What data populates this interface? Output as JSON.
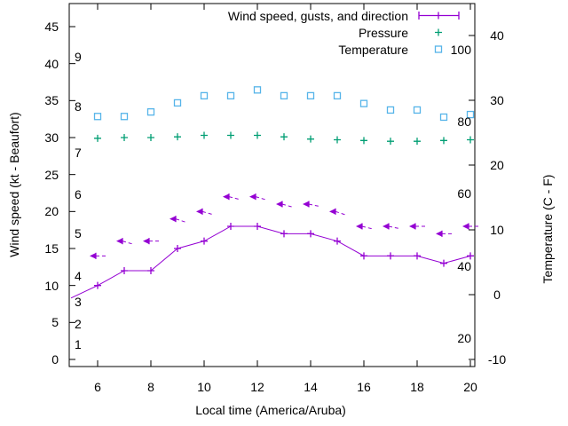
{
  "chart_data": {
    "type": "line",
    "title": "",
    "xlabel": "Local time (America/Aruba)",
    "ylabel_left": "Wind speed (kt - Beaufort)",
    "ylabel_right": "Temperature (C - F)",
    "x_range": [
      5,
      20.2
    ],
    "y_left_range": [
      0,
      48
    ],
    "y_right_range": [
      -11,
      45
    ],
    "x_ticks": [
      6,
      8,
      10,
      12,
      14,
      16,
      18,
      20
    ],
    "y_left_ticks": [
      0,
      5,
      10,
      15,
      20,
      25,
      30,
      35,
      40,
      45
    ],
    "y_right_ticks": [
      -10,
      0,
      10,
      20,
      30,
      40
    ],
    "grid": false,
    "legend_position": "top-right-inside",
    "legend": [
      {
        "label": "Wind speed, gusts, and direction",
        "series": "wind",
        "sample": "errorbar-line"
      },
      {
        "label": "Pressure",
        "series": "pressure",
        "sample": "plus"
      },
      {
        "label": "Temperature",
        "series": "temperature",
        "sample": "open-square"
      }
    ],
    "beaufort_labels": [
      {
        "label": "1",
        "kt": 2.0
      },
      {
        "label": "2",
        "kt": 4.8
      },
      {
        "label": "3",
        "kt": 7.8
      },
      {
        "label": "4",
        "kt": 11.3
      },
      {
        "label": "5",
        "kt": 17.0
      },
      {
        "label": "6",
        "kt": 22.3
      },
      {
        "label": "7",
        "kt": 28.0
      },
      {
        "label": "8",
        "kt": 34.2
      },
      {
        "label": "9",
        "kt": 40.9
      }
    ],
    "fahrenheit_labels": [
      {
        "label": "20",
        "c": -6.7
      },
      {
        "label": "40",
        "c": 4.4
      },
      {
        "label": "60",
        "c": 15.6
      },
      {
        "label": "80",
        "c": 26.7
      },
      {
        "label": "100",
        "c": 37.8
      }
    ],
    "series": {
      "wind": {
        "name": "Wind speed (kt)",
        "color": "#9400d3",
        "marker": "plus",
        "line": "solid",
        "hours": [
          5,
          6,
          7,
          8,
          9,
          10,
          11,
          12,
          13,
          14,
          15,
          16,
          17,
          18,
          19,
          20
        ],
        "values_kt": [
          8.3,
          10,
          12,
          12,
          15,
          16,
          18,
          18,
          17,
          17,
          16,
          14,
          14,
          14,
          13,
          14
        ]
      },
      "gusts": {
        "name": "Gusts and direction",
        "color": "#9400d3",
        "marker": "left-arrow-vector",
        "hours": [
          6,
          7,
          8,
          9,
          10,
          11,
          12,
          13,
          14,
          15,
          16,
          17,
          18,
          19,
          20
        ],
        "values_kt": [
          14,
          16,
          16,
          19,
          20,
          22,
          22,
          21,
          21,
          20,
          18,
          18,
          18,
          17,
          18
        ],
        "direction_tilt_deg": [
          0,
          16,
          0,
          18,
          16,
          14,
          16,
          16,
          12,
          18,
          14,
          12,
          0,
          0,
          0
        ]
      },
      "pressure": {
        "name": "Pressure",
        "color": "#009e73",
        "marker": "plus",
        "hours": [
          6,
          7,
          8,
          9,
          10,
          11,
          12,
          13,
          14,
          15,
          16,
          17,
          18,
          19,
          20
        ],
        "values_left_axis": [
          29.9,
          30.0,
          30.0,
          30.1,
          30.3,
          30.3,
          30.3,
          30.1,
          29.8,
          29.7,
          29.6,
          29.5,
          29.5,
          29.6,
          29.7
        ]
      },
      "temperature": {
        "name": "Temperature",
        "color": "#56b4e9",
        "marker": "open-square",
        "hours": [
          6,
          7,
          8,
          9,
          10,
          11,
          12,
          13,
          14,
          15,
          16,
          17,
          18,
          19,
          20
        ],
        "values_c": [
          27.5,
          27.5,
          28.2,
          29.6,
          30.7,
          30.7,
          31.6,
          30.7,
          30.7,
          30.7,
          29.5,
          28.5,
          28.5,
          27.4,
          27.8
        ]
      }
    },
    "colors": {
      "axis": "#000000",
      "text": "#000000",
      "background": "#ffffff"
    }
  }
}
